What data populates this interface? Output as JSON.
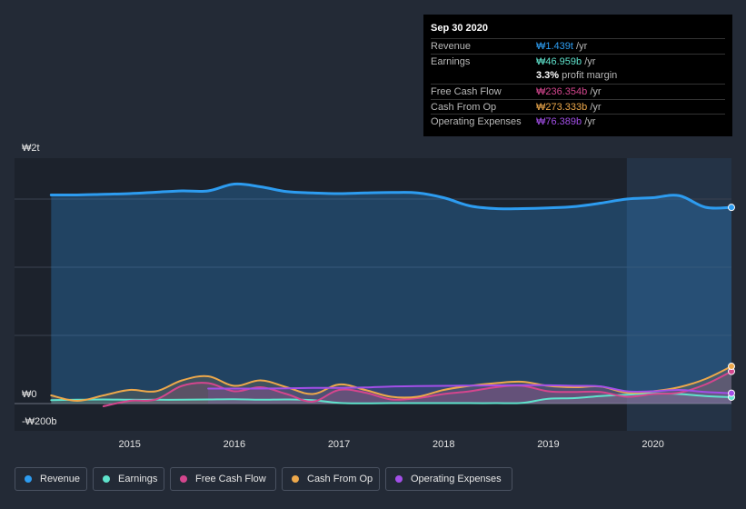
{
  "tooltip": {
    "date": "Sep 30 2020",
    "rows": [
      {
        "label": "Revenue",
        "value": "₩1.439t",
        "unit": " /yr",
        "color": "#2d9cf0"
      },
      {
        "label": "Earnings",
        "value": "₩46.959b",
        "unit": " /yr",
        "color": "#5fe3cc"
      },
      {
        "label": "",
        "value": "3.3%",
        "unit": " profit margin",
        "color": "#ffffff"
      },
      {
        "label": "Free Cash Flow",
        "value": "₩236.354b",
        "unit": " /yr",
        "color": "#d4468e"
      },
      {
        "label": "Cash From Op",
        "value": "₩273.333b",
        "unit": " /yr",
        "color": "#eda84b"
      },
      {
        "label": "Operating Expenses",
        "value": "₩76.389b",
        "unit": " /yr",
        "color": "#a34fe8"
      }
    ]
  },
  "legend": [
    {
      "label": "Revenue",
      "color": "#2d9cf0"
    },
    {
      "label": "Earnings",
      "color": "#5fe3cc"
    },
    {
      "label": "Free Cash Flow",
      "color": "#d4468e"
    },
    {
      "label": "Cash From Op",
      "color": "#eda84b"
    },
    {
      "label": "Operating Expenses",
      "color": "#a34fe8"
    }
  ],
  "chart_data": {
    "type": "area",
    "title": "",
    "xlabel": "",
    "ylabel": "",
    "y_tick_labels": [
      {
        "label": "₩2t",
        "value": 2000
      },
      {
        "label": "₩0",
        "value": 0
      },
      {
        "label": "-₩200b",
        "value": -200
      }
    ],
    "x_tick_labels": [
      "2015",
      "2016",
      "2017",
      "2018",
      "2019",
      "2020"
    ],
    "x_ticks": [
      2015,
      2016,
      2017,
      2018,
      2019,
      2020
    ],
    "xlim": [
      2013.9,
      2020.75
    ],
    "ylim": [
      -200,
      1800
    ],
    "units": "₩ billions",
    "highlight_x_start": 2019.75,
    "series": [
      {
        "name": "Revenue",
        "color": "#2d9cf0",
        "x": [
          2014.25,
          2014.5,
          2014.75,
          2015.0,
          2015.25,
          2015.5,
          2015.75,
          2016.0,
          2016.25,
          2016.5,
          2016.75,
          2017.0,
          2017.25,
          2017.5,
          2017.75,
          2018.0,
          2018.25,
          2018.5,
          2018.75,
          2019.0,
          2019.25,
          2019.5,
          2019.75,
          2020.0,
          2020.25,
          2020.5,
          2020.75
        ],
        "y": [
          1530,
          1530,
          1535,
          1540,
          1550,
          1560,
          1560,
          1610,
          1590,
          1555,
          1545,
          1540,
          1545,
          1548,
          1545,
          1510,
          1450,
          1430,
          1430,
          1435,
          1445,
          1470,
          1500,
          1510,
          1525,
          1440,
          1439
        ]
      },
      {
        "name": "Earnings",
        "color": "#5fe3cc",
        "x": [
          2014.25,
          2014.5,
          2014.75,
          2015.0,
          2015.25,
          2015.5,
          2015.75,
          2016.0,
          2016.25,
          2016.5,
          2016.75,
          2017.0,
          2017.25,
          2017.5,
          2017.75,
          2018.0,
          2018.25,
          2018.5,
          2018.75,
          2019.0,
          2019.25,
          2019.5,
          2019.75,
          2020.0,
          2020.25,
          2020.5,
          2020.75
        ],
        "y": [
          25,
          28,
          30,
          28,
          28,
          28,
          30,
          32,
          28,
          30,
          25,
          5,
          2,
          3,
          3,
          3,
          3,
          3,
          5,
          35,
          40,
          55,
          65,
          75,
          70,
          55,
          47
        ]
      },
      {
        "name": "Free Cash Flow",
        "color": "#d4468e",
        "x": [
          2014.75,
          2015.0,
          2015.25,
          2015.5,
          2015.75,
          2016.0,
          2016.25,
          2016.5,
          2016.75,
          2017.0,
          2017.25,
          2017.5,
          2017.75,
          2018.0,
          2018.25,
          2018.5,
          2018.75,
          2019.0,
          2019.25,
          2019.5,
          2019.75,
          2020.0,
          2020.25,
          2020.5,
          2020.75
        ],
        "y": [
          -20,
          20,
          30,
          130,
          150,
          90,
          120,
          70,
          15,
          100,
          80,
          30,
          40,
          70,
          90,
          120,
          130,
          90,
          85,
          85,
          50,
          70,
          80,
          140,
          236
        ]
      },
      {
        "name": "Cash From Op",
        "color": "#eda84b",
        "x": [
          2014.25,
          2014.5,
          2014.75,
          2015.0,
          2015.25,
          2015.5,
          2015.75,
          2016.0,
          2016.25,
          2016.5,
          2016.75,
          2017.0,
          2017.25,
          2017.5,
          2017.75,
          2018.0,
          2018.25,
          2018.5,
          2018.75,
          2019.0,
          2019.25,
          2019.5,
          2019.75,
          2020.0,
          2020.25,
          2020.5,
          2020.75
        ],
        "y": [
          60,
          20,
          60,
          100,
          90,
          170,
          200,
          130,
          170,
          120,
          70,
          140,
          100,
          50,
          50,
          100,
          130,
          150,
          160,
          130,
          120,
          125,
          80,
          90,
          120,
          180,
          273
        ]
      },
      {
        "name": "Operating Expenses",
        "color": "#a34fe8",
        "x": [
          2015.75,
          2016.0,
          2016.25,
          2016.5,
          2016.75,
          2017.0,
          2017.25,
          2017.5,
          2017.75,
          2018.0,
          2018.25,
          2018.5,
          2018.75,
          2019.0,
          2019.25,
          2019.5,
          2019.75,
          2020.0,
          2020.25,
          2020.5,
          2020.75
        ],
        "y": [
          110,
          110,
          110,
          112,
          115,
          115,
          118,
          125,
          128,
          130,
          132,
          133,
          135,
          134,
          130,
          126,
          90,
          90,
          100,
          85,
          76
        ]
      }
    ]
  }
}
